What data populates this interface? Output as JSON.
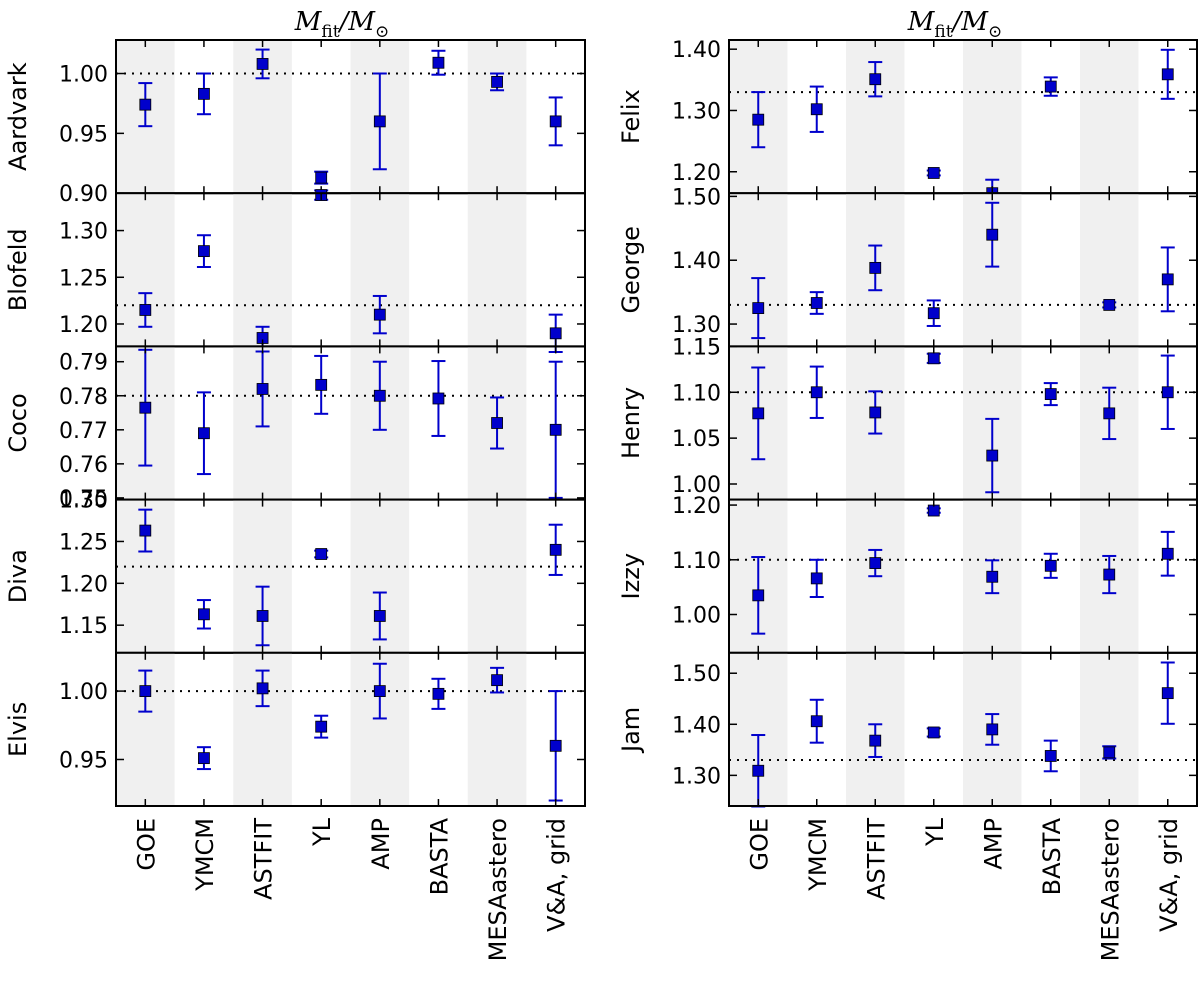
{
  "chart_data": [
    {
      "type": "scatter",
      "title": "M_fit/M_☉",
      "title_main": "M",
      "title_sub": "fit",
      "title_rest": "/M",
      "title_sym": "⊙",
      "categories": [
        "GOE",
        "YMCM",
        "ASTFIT",
        "YL",
        "AMP",
        "BASTA",
        "MESAastero",
        "V&A, grid"
      ],
      "marker_color": "#0000cc",
      "band_color": "#f0f0f0",
      "panels": [
        {
          "name": "Aardvark",
          "ylim": [
            0.9,
            1.028
          ],
          "yticks": [
            "0.90",
            "0.95",
            "1.00"
          ],
          "ref": 1.0,
          "values": [
            0.974,
            0.983,
            1.008,
            0.913,
            0.96,
            1.009,
            0.993,
            0.96
          ],
          "err_lo": [
            0.018,
            0.017,
            0.012,
            0.005,
            0.04,
            0.01,
            0.007,
            0.02
          ],
          "err_hi": [
            0.018,
            0.017,
            0.012,
            0.005,
            0.04,
            0.01,
            0.007,
            0.02
          ]
        },
        {
          "name": "Blofeld",
          "ylim": [
            1.176,
            1.34
          ],
          "yticks": [
            "1.20",
            "1.25",
            "1.30"
          ],
          "ref": 1.22,
          "values": [
            1.215,
            1.278,
            1.185,
            1.338,
            1.21,
            null,
            null,
            1.19
          ],
          "err_lo": [
            0.018,
            0.017,
            0.012,
            0.005,
            0.02,
            0,
            0,
            0.02
          ],
          "err_hi": [
            0.018,
            0.017,
            0.012,
            0.005,
            0.02,
            0,
            0,
            0.02
          ]
        },
        {
          "name": "Coco",
          "ylim": [
            0.7495,
            0.7945
          ],
          "yticks": [
            "0.75",
            "0.76",
            "0.77",
            "0.78",
            "0.79"
          ],
          "ref": 0.78,
          "values": [
            0.7765,
            0.769,
            0.782,
            0.7832,
            0.78,
            0.7792,
            0.772,
            0.77
          ],
          "err_lo": [
            0.017,
            0.012,
            0.011,
            0.0085,
            0.01,
            0.011,
            0.0075,
            0.02
          ],
          "err_hi": [
            0.017,
            0.012,
            0.011,
            0.0085,
            0.01,
            0.011,
            0.0075,
            0.02
          ]
        },
        {
          "name": "Diva",
          "ylim": [
            1.117,
            1.3
          ],
          "yticks": [
            "1.15",
            "1.20",
            "1.25",
            "1.30"
          ],
          "ref": 1.22,
          "values": [
            1.263,
            1.163,
            1.161,
            1.235,
            1.161,
            null,
            null,
            1.24
          ],
          "err_lo": [
            0.025,
            0.017,
            0.035,
            0.004,
            0.028,
            0,
            0,
            0.03
          ],
          "err_hi": [
            0.025,
            0.017,
            0.035,
            0.004,
            0.028,
            0,
            0,
            0.03
          ]
        },
        {
          "name": "Elvis",
          "ylim": [
            0.916,
            1.028
          ],
          "yticks": [
            "0.95",
            "1.00"
          ],
          "ref": 1.0,
          "values": [
            1.0,
            0.951,
            1.002,
            0.974,
            1.0,
            0.998,
            1.008,
            0.96
          ],
          "err_lo": [
            0.015,
            0.008,
            0.013,
            0.008,
            0.02,
            0.011,
            0.009,
            0.04
          ],
          "err_hi": [
            0.015,
            0.008,
            0.013,
            0.008,
            0.02,
            0.011,
            0.009,
            0.04
          ]
        },
        {
          "name": "Felix",
          "ylim": [
            1.165,
            1.415
          ],
          "yticks": [
            "1.20",
            "1.30",
            "1.40"
          ],
          "ref": 1.33,
          "values": [
            1.285,
            1.302,
            1.351,
            1.198,
            1.165,
            1.339,
            null,
            1.359
          ],
          "err_lo": [
            0.045,
            0.037,
            0.028,
            0.004,
            0.022,
            0.015,
            0,
            0.04
          ],
          "err_hi": [
            0.045,
            0.037,
            0.028,
            0.004,
            0.022,
            0.015,
            0,
            0.04
          ]
        },
        {
          "name": "George",
          "ylim": [
            1.265,
            1.505
          ],
          "yticks": [
            "1.30",
            "1.40",
            "1.50"
          ],
          "ref": 1.33,
          "values": [
            1.325,
            1.333,
            1.388,
            1.317,
            1.44,
            null,
            1.33,
            1.37
          ],
          "err_lo": [
            0.047,
            0.017,
            0.035,
            0.02,
            0.05,
            0,
            0.004,
            0.05
          ],
          "err_hi": [
            0.047,
            0.017,
            0.035,
            0.02,
            0.05,
            0,
            0.004,
            0.05
          ]
        },
        {
          "name": "Henry",
          "ylim": [
            0.983,
            1.15
          ],
          "yticks": [
            "1.00",
            "1.05",
            "1.10",
            "1.15"
          ],
          "ref": 1.1,
          "values": [
            1.077,
            1.1,
            1.078,
            1.137,
            1.031,
            1.098,
            1.077,
            1.1
          ],
          "err_lo": [
            0.05,
            0.028,
            0.023,
            0.005,
            0.04,
            0.012,
            0.028,
            0.04
          ],
          "err_hi": [
            0.05,
            0.028,
            0.023,
            0.005,
            0.04,
            0.012,
            0.028,
            0.04
          ]
        },
        {
          "name": "Izzy",
          "ylim": [
            0.93,
            1.21
          ],
          "yticks": [
            "1.00",
            "1.10",
            "1.20"
          ],
          "ref": 1.1,
          "values": [
            1.035,
            1.066,
            1.094,
            1.19,
            1.069,
            1.089,
            1.073,
            1.111
          ],
          "err_lo": [
            0.07,
            0.034,
            0.024,
            0.004,
            0.03,
            0.022,
            0.034,
            0.04
          ],
          "err_hi": [
            0.07,
            0.034,
            0.024,
            0.004,
            0.03,
            0.022,
            0.034,
            0.04
          ]
        },
        {
          "name": "Jam",
          "ylim": [
            1.24,
            1.54
          ],
          "yticks": [
            "1.30",
            "1.40",
            "1.50"
          ],
          "ref": 1.33,
          "values": [
            1.309,
            1.406,
            1.368,
            1.384,
            1.39,
            1.338,
            1.345,
            1.461
          ],
          "err_lo": [
            0.07,
            0.042,
            0.032,
            0.008,
            0.03,
            0.03,
            0.012,
            0.06
          ],
          "err_hi": [
            0.07,
            0.042,
            0.032,
            0.008,
            0.03,
            0.03,
            0.012,
            0.06
          ]
        }
      ]
    }
  ]
}
